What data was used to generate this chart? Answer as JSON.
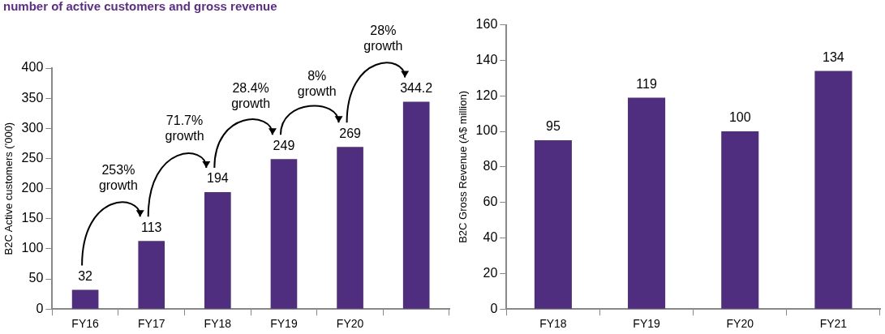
{
  "chart_data": [
    {
      "type": "bar",
      "title": "number of active customers and gross revenue",
      "ylabel": "B2C Active customers ('000)",
      "categories": [
        "FY16",
        "FY17",
        "FY18",
        "FY19",
        "FY20",
        null
      ],
      "values": [
        32,
        113,
        194,
        249,
        269,
        344.2
      ],
      "color": "#4f2d7f",
      "ylim": [
        0,
        400
      ],
      "yticks": [
        0,
        50,
        100,
        150,
        200,
        250,
        300,
        350,
        400
      ],
      "grid": false,
      "legend": false,
      "data_labels": true,
      "annotations": [
        "253%\ngrowth",
        "71.7%\ngrowth",
        "28.4%\ngrowth",
        "8%\ngrowth",
        "28%\ngrowth"
      ]
    },
    {
      "type": "bar",
      "ylabel": "B2C Gross Revenue (A$ million)",
      "categories": [
        "FY18",
        "FY19",
        "FY20",
        "FY21"
      ],
      "values": [
        95,
        119,
        100,
        134
      ],
      "color": "#4f2d7f",
      "ylim": [
        0,
        160
      ],
      "yticks": [
        0,
        20,
        40,
        60,
        80,
        100,
        120,
        140,
        160
      ],
      "grid": false,
      "legend": false,
      "data_labels": true
    }
  ]
}
